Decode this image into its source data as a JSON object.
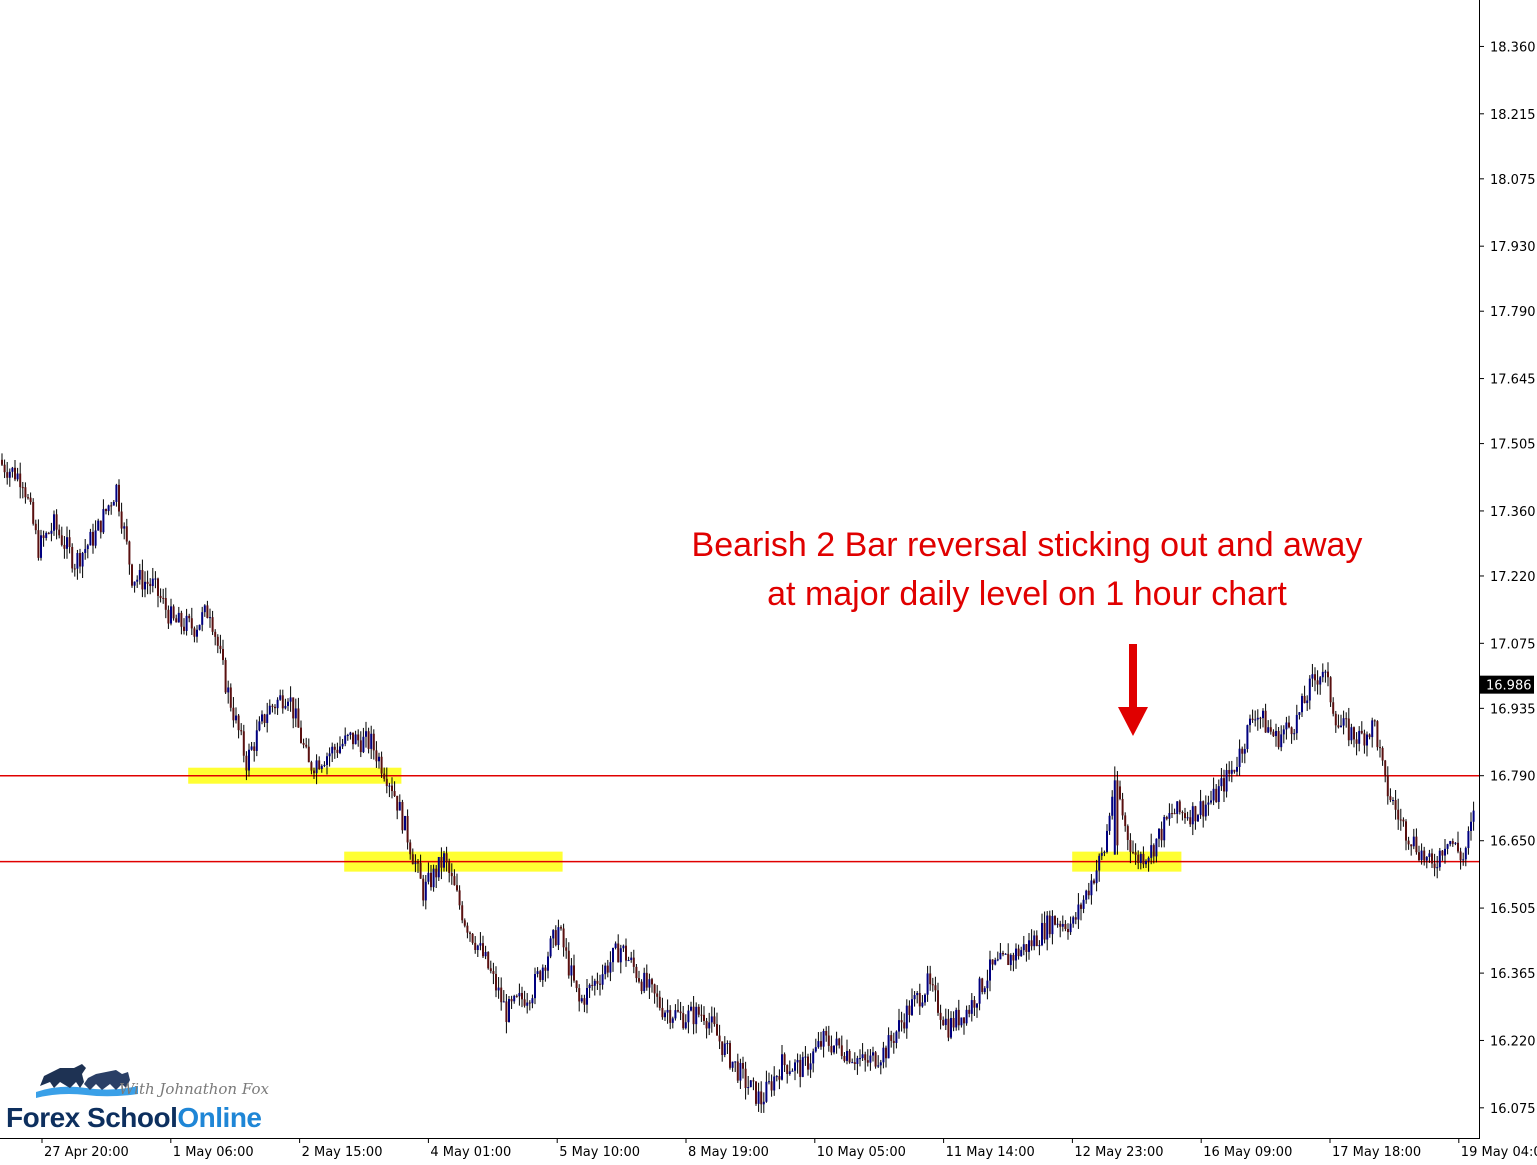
{
  "colors": {
    "bull": "#000080",
    "bear": "#5a1010",
    "wick": "#000000",
    "level_line": "#e00000",
    "highlight": "#ffff33",
    "annotation": "#e00000",
    "current_price_bg": "#000000"
  },
  "annotation": {
    "line1": "Bearish 2 Bar reversal sticking out and away",
    "line2": "at major daily level on 1 hour chart",
    "arrow": "down-arrow-icon"
  },
  "current_price": "16.986",
  "logo": {
    "icon": "bull-bear-icon",
    "tagline": "With Johnathon Fox",
    "name_part1": "Forex School",
    "name_part2": "Online"
  },
  "chart_data": {
    "type": "candlestick",
    "timeframe": "1 hour",
    "ylim": [
      16.01,
      18.46
    ],
    "y_ticks": [
      "18.360",
      "18.215",
      "18.075",
      "17.930",
      "17.790",
      "17.645",
      "17.505",
      "17.360",
      "17.220",
      "17.075",
      "16.935",
      "16.790",
      "16.650",
      "16.505",
      "16.365",
      "16.220",
      "16.075"
    ],
    "x_ticks": [
      "27 Apr 20:00",
      "1 May 06:00",
      "2 May 15:00",
      "4 May 01:00",
      "5 May 10:00",
      "8 May 19:00",
      "10 May 05:00",
      "11 May 14:00",
      "12 May 23:00",
      "16 May 09:00",
      "17 May 18:00",
      "19 May 04:00"
    ],
    "horizontal_levels": [
      16.79,
      16.605
    ],
    "zones": [
      {
        "from_bar": 0,
        "to_bar": 0,
        "price": 16.79
      },
      {
        "from_bar": 0,
        "to_bar": 0,
        "price": 16.605
      }
    ],
    "close_path": [
      [
        0,
        17.46
      ],
      [
        8,
        17.43
      ],
      [
        14,
        17.28
      ],
      [
        20,
        17.33
      ],
      [
        28,
        17.25
      ],
      [
        36,
        17.31
      ],
      [
        44,
        17.41
      ],
      [
        50,
        17.22
      ],
      [
        58,
        17.2
      ],
      [
        66,
        17.12
      ],
      [
        74,
        17.11
      ],
      [
        80,
        17.15
      ],
      [
        86,
        16.99
      ],
      [
        94,
        16.82
      ],
      [
        102,
        16.93
      ],
      [
        110,
        16.97
      ],
      [
        118,
        16.81
      ],
      [
        126,
        16.84
      ],
      [
        134,
        16.87
      ],
      [
        142,
        16.86
      ],
      [
        150,
        16.77
      ],
      [
        156,
        16.66
      ],
      [
        162,
        16.54
      ],
      [
        170,
        16.61
      ],
      [
        178,
        16.48
      ],
      [
        186,
        16.39
      ],
      [
        194,
        16.28
      ],
      [
        204,
        16.33
      ],
      [
        214,
        16.46
      ],
      [
        222,
        16.3
      ],
      [
        230,
        16.36
      ],
      [
        238,
        16.42
      ],
      [
        246,
        16.35
      ],
      [
        254,
        16.29
      ],
      [
        262,
        16.27
      ],
      [
        270,
        16.28
      ],
      [
        278,
        16.2
      ],
      [
        286,
        16.13
      ],
      [
        292,
        16.09
      ],
      [
        300,
        16.17
      ],
      [
        308,
        16.16
      ],
      [
        316,
        16.22
      ],
      [
        324,
        16.2
      ],
      [
        332,
        16.17
      ],
      [
        340,
        16.2
      ],
      [
        348,
        16.28
      ],
      [
        356,
        16.34
      ],
      [
        364,
        16.25
      ],
      [
        372,
        16.29
      ],
      [
        380,
        16.37
      ],
      [
        388,
        16.4
      ],
      [
        396,
        16.43
      ],
      [
        404,
        16.48
      ],
      [
        412,
        16.47
      ],
      [
        418,
        16.55
      ],
      [
        424,
        16.63
      ],
      [
        428,
        16.79
      ],
      [
        432,
        16.68
      ],
      [
        436,
        16.61
      ],
      [
        442,
        16.63
      ],
      [
        450,
        16.71
      ],
      [
        458,
        16.71
      ],
      [
        466,
        16.74
      ],
      [
        474,
        16.81
      ],
      [
        482,
        16.93
      ],
      [
        490,
        16.87
      ],
      [
        498,
        16.91
      ],
      [
        504,
        16.99
      ],
      [
        508,
        17.02
      ],
      [
        514,
        16.9
      ],
      [
        522,
        16.87
      ],
      [
        528,
        16.9
      ],
      [
        532,
        16.77
      ],
      [
        538,
        16.69
      ],
      [
        544,
        16.64
      ],
      [
        550,
        16.59
      ],
      [
        556,
        16.66
      ],
      [
        562,
        16.61
      ],
      [
        566,
        16.7
      ]
    ],
    "special_bars": [
      {
        "bar": 428,
        "open": 16.62,
        "high": 16.81,
        "low": 16.62,
        "close": 16.78
      },
      {
        "bar": 429,
        "open": 16.78,
        "high": 16.8,
        "low": 16.62,
        "close": 16.64
      }
    ]
  }
}
